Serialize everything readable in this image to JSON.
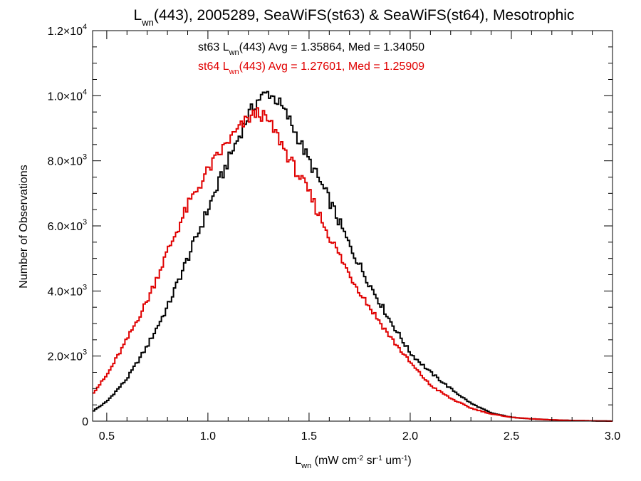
{
  "chart_data": {
    "type": "histogram-step",
    "title": {
      "prefix": "L",
      "sub": "wn",
      "suffix": "(443), 2005289, SeaWiFS(st63) & SeaWiFS(st64), Mesotrophic"
    },
    "xlabel": {
      "main": "L",
      "sub": "wn",
      "rest": " (mW cm",
      "sup1": "-2",
      "mid1": " sr",
      "sup2": "-1",
      "mid2": " um",
      "sup3": "-1",
      "end": ")"
    },
    "ylabel": "Number of Observations",
    "xlim": [
      0.43,
      3.0
    ],
    "ylim": [
      0,
      12000
    ],
    "x_ticks": [
      {
        "value": 0.5,
        "label": "0.5"
      },
      {
        "value": 1.0,
        "label": "1.0"
      },
      {
        "value": 1.5,
        "label": "1.5"
      },
      {
        "value": 2.0,
        "label": "2.0"
      },
      {
        "value": 2.5,
        "label": "2.5"
      },
      {
        "value": 3.0,
        "label": "3.0"
      }
    ],
    "y_ticks": [
      {
        "value": 0,
        "mant": "0",
        "exp": ""
      },
      {
        "value": 2000,
        "mant": "2.0×10",
        "exp": "3"
      },
      {
        "value": 4000,
        "mant": "4.0×10",
        "exp": "3"
      },
      {
        "value": 6000,
        "mant": "6.0×10",
        "exp": "3"
      },
      {
        "value": 8000,
        "mant": "8.0×10",
        "exp": "3"
      },
      {
        "value": 10000,
        "mant": "1.0×10",
        "exp": "4"
      },
      {
        "value": 12000,
        "mant": "1.2×10",
        "exp": "4"
      }
    ],
    "bin_width": 0.01,
    "series": [
      {
        "name": "st63",
        "color": "#000000",
        "stats": {
          "pre": "st63 L",
          "sub": "wn",
          "post": "(443) Avg = 1.35864, Med = 1.34050"
        },
        "x": [
          0.43,
          0.5,
          0.6,
          0.7,
          0.8,
          0.9,
          1.0,
          1.1,
          1.2,
          1.25,
          1.3,
          1.35,
          1.4,
          1.5,
          1.6,
          1.7,
          1.8,
          1.9,
          2.0,
          2.1,
          2.2,
          2.3,
          2.4,
          2.5,
          2.6,
          2.7,
          2.8,
          2.9,
          3.0
        ],
        "y": [
          300,
          600,
          1300,
          2300,
          3500,
          5000,
          6500,
          8000,
          9400,
          9900,
          10100,
          9800,
          9300,
          8000,
          6800,
          5400,
          4200,
          3100,
          2100,
          1500,
          1000,
          550,
          250,
          120,
          70,
          40,
          20,
          10,
          0
        ]
      },
      {
        "name": "st64",
        "color": "#e00000",
        "stats": {
          "pre": "st64 L",
          "sub": "wn",
          "post": "(443) Avg = 1.27601, Med = 1.25909"
        },
        "x": [
          0.43,
          0.5,
          0.6,
          0.7,
          0.8,
          0.9,
          1.0,
          1.1,
          1.2,
          1.25,
          1.3,
          1.35,
          1.4,
          1.5,
          1.6,
          1.7,
          1.8,
          1.9,
          2.0,
          2.1,
          2.2,
          2.3,
          2.4,
          2.5,
          2.6,
          2.7,
          2.8,
          2.9,
          3.0
        ],
        "y": [
          850,
          1400,
          2500,
          3700,
          5200,
          6600,
          7700,
          8600,
          9300,
          9500,
          9200,
          8700,
          8100,
          7000,
          5700,
          4500,
          3500,
          2600,
          1800,
          1100,
          700,
          400,
          220,
          120,
          70,
          40,
          20,
          10,
          0
        ]
      }
    ]
  }
}
